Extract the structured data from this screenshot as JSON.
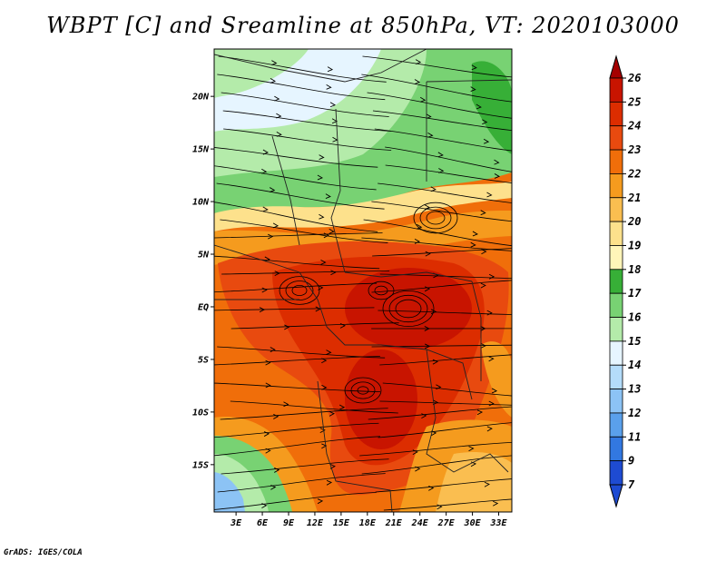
{
  "title": "WBPT [C] and Sreamline at 850hPa, VT: 2020103000",
  "credit": "GrADS: IGES/COLA",
  "map": {
    "lat_labels": [
      {
        "lat": 20,
        "label": "20N"
      },
      {
        "lat": 15,
        "label": "15N"
      },
      {
        "lat": 10,
        "label": "10N"
      },
      {
        "lat": 5,
        "label": "5N"
      },
      {
        "lat": 0,
        "label": "EQ"
      },
      {
        "lat": -5,
        "label": "5S"
      },
      {
        "lat": -10,
        "label": "10S"
      },
      {
        "lat": -15,
        "label": "15S"
      }
    ],
    "lon_labels": [
      {
        "lon": 3,
        "label": "3E"
      },
      {
        "lon": 6,
        "label": "6E"
      },
      {
        "lon": 9,
        "label": "9E"
      },
      {
        "lon": 12,
        "label": "12E"
      },
      {
        "lon": 15,
        "label": "15E"
      },
      {
        "lon": 18,
        "label": "18E"
      },
      {
        "lon": 21,
        "label": "21E"
      },
      {
        "lon": 24,
        "label": "24E"
      },
      {
        "lon": 27,
        "label": "27E"
      },
      {
        "lon": 30,
        "label": "30E"
      },
      {
        "lon": 33,
        "label": "33E"
      }
    ],
    "lon_range": [
      0.5,
      34.5
    ],
    "lat_range": [
      -19.5,
      24.5
    ]
  },
  "colorbar": {
    "levels": [
      {
        "label": "26",
        "color": "#a50000"
      },
      {
        "label": "25",
        "color": "#c81400"
      },
      {
        "label": "24",
        "color": "#dc2d00"
      },
      {
        "label": "23",
        "color": "#e84a0f"
      },
      {
        "label": "22",
        "color": "#f06e0a"
      },
      {
        "label": "21",
        "color": "#f59b1e"
      },
      {
        "label": "20",
        "color": "#fabe50"
      },
      {
        "label": "19",
        "color": "#fde18c"
      },
      {
        "label": "18",
        "color": "#fff5b9"
      },
      {
        "label": "17",
        "color": "#37af37"
      },
      {
        "label": "16",
        "color": "#78d273"
      },
      {
        "label": "15",
        "color": "#b4ebaa"
      },
      {
        "label": "14",
        "color": "#e6f5ff"
      },
      {
        "label": "13",
        "color": "#b4dcfa"
      },
      {
        "label": "12",
        "color": "#8cc3f5"
      },
      {
        "label": "11",
        "color": "#5aa0eb"
      },
      {
        "label": "9",
        "color": "#3278e1"
      },
      {
        "label": "7",
        "color": "#1e4bd2"
      }
    ],
    "top_color": "#a50000",
    "bottom_color": "#1e4bd2"
  }
}
